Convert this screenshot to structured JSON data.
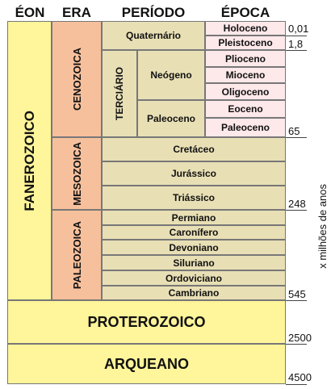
{
  "headers": {
    "eon": "ÉON",
    "era": "ERA",
    "period": "PERÍODO",
    "epoch": "ÉPOCA"
  },
  "eons": {
    "phanerozoic": "FANEROZOICO",
    "proterozoic": "PROTEROZOICO",
    "archean": "ARQUEANO"
  },
  "eras": {
    "cenozoic": "CENOZOICA",
    "mesozoic": "MESOZOICA",
    "paleozoic": "PALEOZOICA"
  },
  "periods": {
    "quaternary": "Quaternário",
    "tertiary": "TERCIÁRIO",
    "neogene": "Neógeno",
    "paleogene": "Paleoceno",
    "cretaceous": "Cretáceo",
    "jurassic": "Jurássico",
    "triassic": "Triássico",
    "permian": "Permiano",
    "carboniferous": "Caronífero",
    "devonian": "Devoniano",
    "silurian": "Siluriano",
    "ordovician": "Ordoviciano",
    "cambrian": "Cambriano"
  },
  "epochs": {
    "holocene": "Holoceno",
    "pleistocene": "Pleistoceno",
    "pliocene": "Plioceno",
    "miocene": "Mioceno",
    "oligocene": "Oligoceno",
    "eocene": "Eoceno",
    "paleocene": "Paleoceno"
  },
  "ages": {
    "a1": "0,01",
    "a2": "1,8",
    "a3": "65",
    "a4": "248",
    "a5": "545",
    "a6": "2500",
    "a7": "4500"
  },
  "axis_label": "x milhões de anos",
  "colors": {
    "eon": "#fff59a",
    "era": "#f7c09c",
    "period": "#e8dfb5",
    "epoch": "#fde8ea"
  }
}
